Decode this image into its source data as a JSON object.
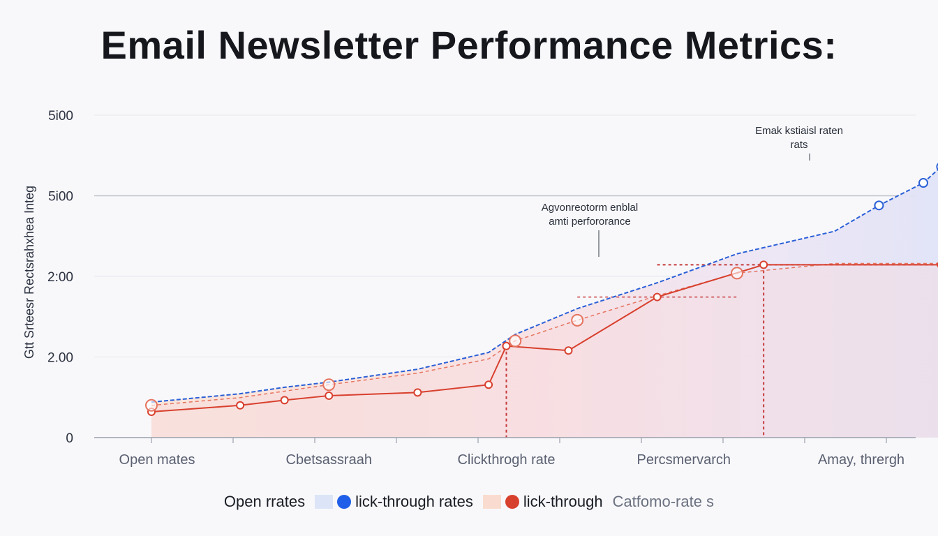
{
  "chart_data": {
    "type": "line",
    "title": "Email Newsletter Performance Metrics:",
    "ylabel": "Gtt Srteesr Rectsrahxhea Integ",
    "yticks": [
      "0",
      "2.00",
      "2:00",
      "5i00",
      "5i00"
    ],
    "categories": [
      "Open mates",
      "Cbetsassraah",
      "Clickthrogh rate",
      "Percsmervarch",
      "Amay, thrergh"
    ],
    "ylim": [
      0,
      5
    ],
    "grid": true,
    "legend_position": "bottom",
    "series": [
      {
        "name": "lick-through rates",
        "color": "#2a5fd6",
        "x": [
          0.0,
          0.5,
          0.75,
          1.0,
          1.5,
          1.9,
          2.05,
          2.4,
          2.85,
          3.3,
          3.85,
          4.1,
          4.35,
          4.45
        ],
        "values": [
          0.55,
          0.68,
          0.78,
          0.86,
          1.06,
          1.32,
          1.6,
          2.0,
          2.4,
          2.85,
          3.2,
          3.6,
          3.95,
          4.2
        ]
      },
      {
        "name": "lick-through",
        "color": "#d8402e",
        "x": [
          0.0,
          0.5,
          0.75,
          1.0,
          1.5,
          1.9,
          2.0,
          2.35,
          2.85,
          3.45,
          4.45
        ],
        "values": [
          0.4,
          0.5,
          0.58,
          0.65,
          0.7,
          0.82,
          1.42,
          1.35,
          2.18,
          2.68,
          2.68
        ]
      },
      {
        "name": "Catfomo-rate s",
        "color": "#e5735f",
        "x": [
          0.0,
          0.5,
          0.75,
          1.0,
          1.5,
          1.9,
          2.05,
          2.4,
          2.85,
          3.3,
          3.85,
          4.45
        ],
        "values": [
          0.5,
          0.62,
          0.72,
          0.82,
          1.0,
          1.22,
          1.5,
          1.82,
          2.2,
          2.55,
          2.7,
          2.7
        ]
      }
    ],
    "annotations": [
      {
        "text_line1": "Agvonreotorm enblal",
        "text_line2": "amti perfororance",
        "x": 2.85,
        "y": 2.2
      },
      {
        "text_line1": "Emak kstiaisl raten",
        "text_line2": "rats",
        "x": 4.1,
        "y": 3.6
      }
    ]
  },
  "legend": {
    "label_open": "Open rrates",
    "label_ctr": "lick-through rates",
    "label_ct": "lick-through",
    "label_conv": "Catfomo-rate s",
    "color_blue": "#1f5ee8",
    "color_red": "#d8402e",
    "swatch_blue": "#dce5f7",
    "swatch_peach": "#f9dccf"
  }
}
